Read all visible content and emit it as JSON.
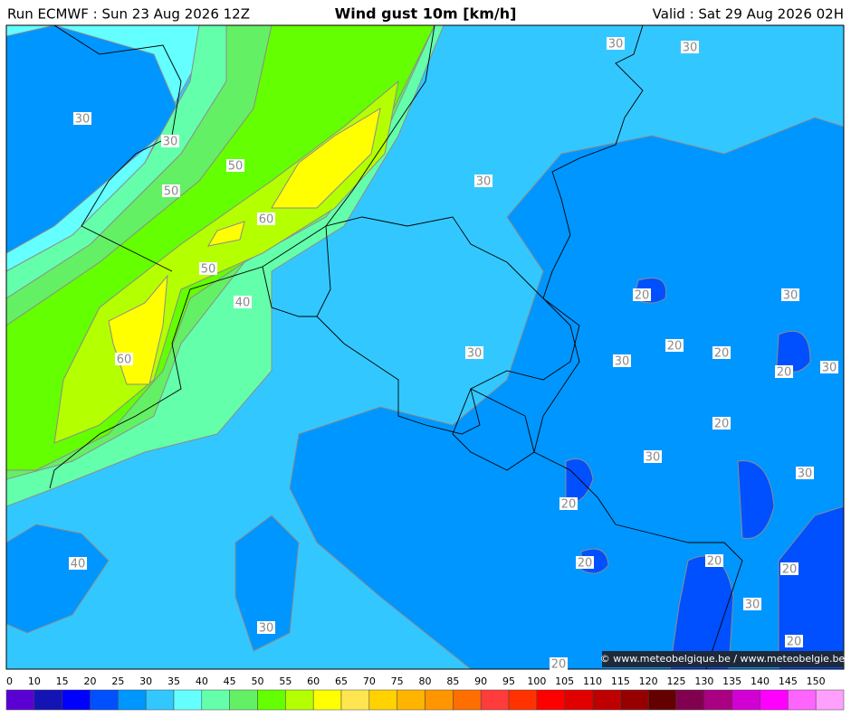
{
  "header": {
    "run": "Run ECMWF : Sun 23 Aug 2026 12Z",
    "title": "Wind gust 10m [km/h]",
    "valid": "Valid : Sat 29 Aug 2026 02H"
  },
  "map": {
    "contour_labels": [
      30,
      30,
      30,
      30,
      50,
      50,
      30,
      60,
      50,
      40,
      20,
      30,
      20,
      20,
      30,
      30,
      60,
      20,
      30,
      20,
      30,
      30,
      20,
      40,
      20,
      20,
      20,
      30,
      30,
      20,
      20
    ],
    "credit": "© www.meteobelgique.be / www.meteobelgie.be"
  },
  "legend": {
    "ticks": [
      0,
      10,
      15,
      20,
      25,
      30,
      35,
      40,
      45,
      50,
      55,
      60,
      65,
      70,
      75,
      80,
      85,
      90,
      95,
      100,
      105,
      110,
      115,
      120,
      125,
      130,
      135,
      140,
      145,
      150
    ],
    "colors": [
      "#5a00d2",
      "#1414b4",
      "#0000ff",
      "#0050ff",
      "#0096ff",
      "#32c8ff",
      "#64ffff",
      "#64ffaa",
      "#64f064",
      "#64ff00",
      "#b4ff00",
      "#ffff00",
      "#ffe650",
      "#ffd200",
      "#ffb400",
      "#ff9600",
      "#ff6e00",
      "#ff3c3c",
      "#ff3200",
      "#ff0000",
      "#e10000",
      "#be0000",
      "#960000",
      "#640000",
      "#820050",
      "#aa0082",
      "#d200d2",
      "#ff00ff",
      "#ff64ff",
      "#ffa0ff"
    ]
  }
}
